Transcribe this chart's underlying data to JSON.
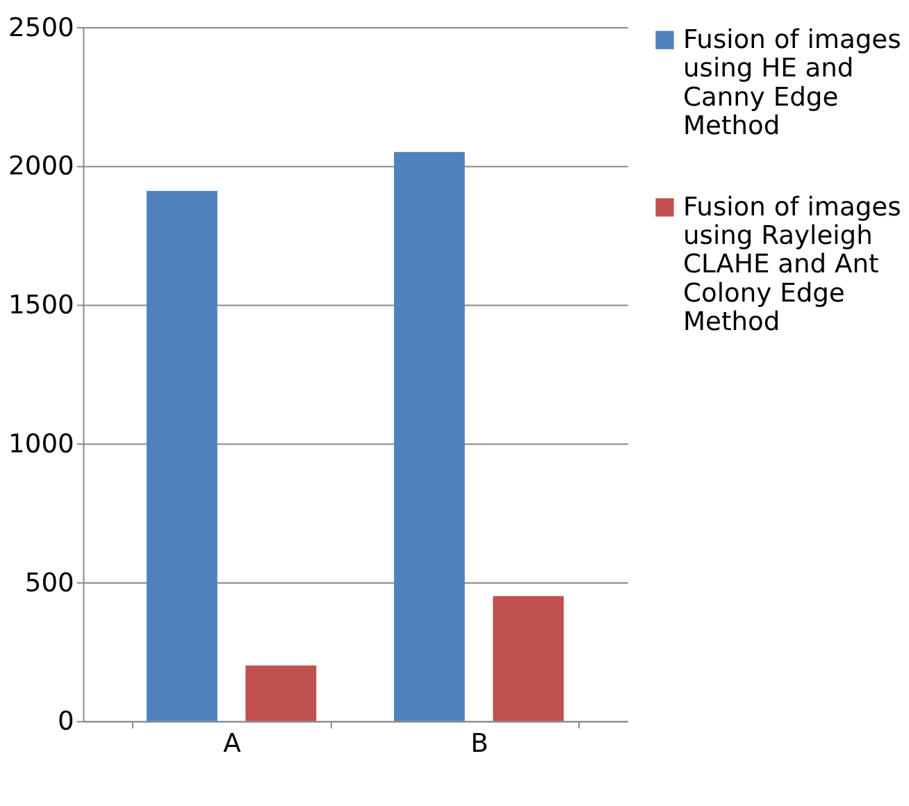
{
  "chart_data": {
    "type": "bar",
    "categories": [
      "A",
      "B"
    ],
    "series": [
      {
        "name": "Fusion of images using HE and Canny Edge Method",
        "color": "#4f81bd",
        "values": [
          1910,
          2050
        ]
      },
      {
        "name": "Fusion of images using Rayleigh CLAHE and Ant Colony Edge Method",
        "color": "#c0504d",
        "values": [
          200,
          450
        ]
      }
    ],
    "ylim": [
      0,
      2500
    ],
    "yticks": [
      0,
      500,
      1000,
      1500,
      2000,
      2500
    ],
    "grid": "y",
    "legend": "right"
  }
}
